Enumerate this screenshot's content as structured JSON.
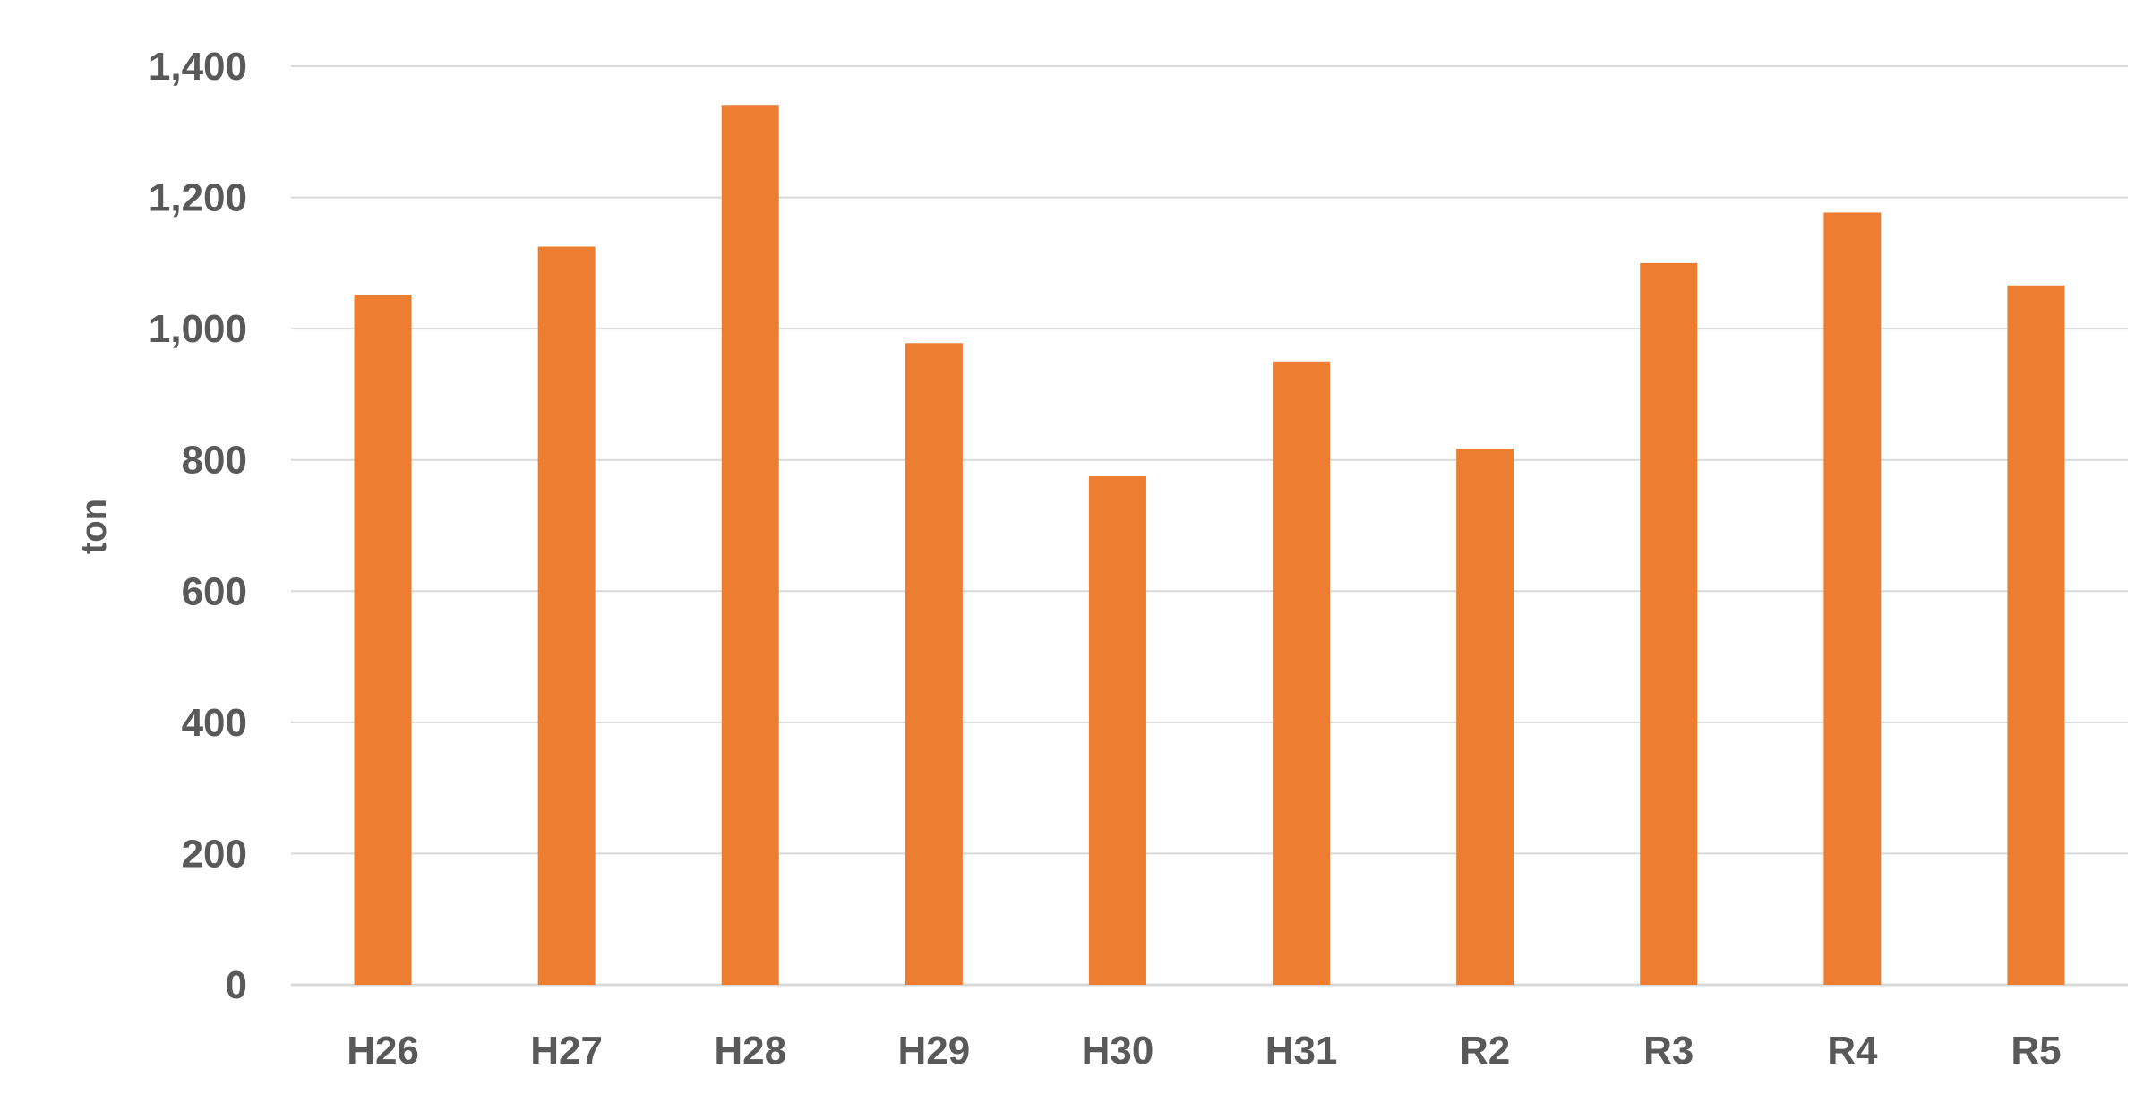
{
  "chart_data": {
    "type": "bar",
    "categories": [
      "H26",
      "H27",
      "H28",
      "H29",
      "H30",
      "H31",
      "R2",
      "R3",
      "R4",
      "R5"
    ],
    "values": [
      1052,
      1125,
      1341,
      978,
      775,
      950,
      817,
      1100,
      1177,
      1066
    ],
    "xlabel": "",
    "ylabel": "ton",
    "ylim": [
      0,
      1400
    ],
    "yticks": [
      0,
      200,
      400,
      600,
      800,
      1000,
      1200,
      1400
    ],
    "ytick_labels": [
      "0",
      "200",
      "400",
      "600",
      "800",
      "1,000",
      "1,200",
      "1,400"
    ],
    "grid": true,
    "legend": "none",
    "bar_color": "#ED7D31"
  }
}
